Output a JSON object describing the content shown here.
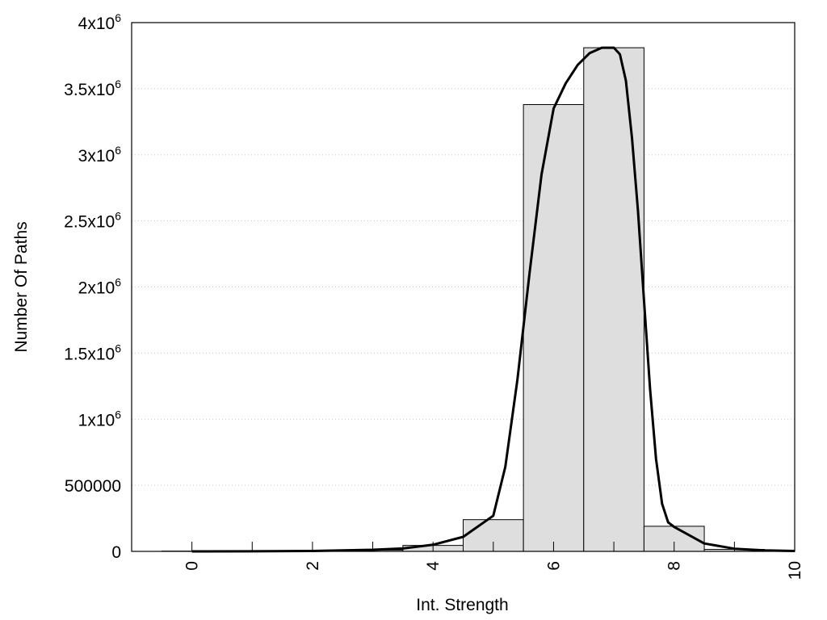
{
  "chart_data": {
    "type": "bar",
    "xlabel": "Int. Strength",
    "ylabel": "Number Of Paths",
    "xlim": [
      -1,
      10
    ],
    "ylim": [
      0,
      4000000
    ],
    "x_ticks": [
      {
        "value": 0,
        "label": "0"
      },
      {
        "value": 2,
        "label": "2"
      },
      {
        "value": 4,
        "label": "4"
      },
      {
        "value": 6,
        "label": "6"
      },
      {
        "value": 8,
        "label": "8"
      },
      {
        "value": 10,
        "label": "10"
      }
    ],
    "y_ticks": [
      {
        "value": 0,
        "base": "0",
        "exp": ""
      },
      {
        "value": 500000,
        "base": "500000",
        "exp": ""
      },
      {
        "value": 1000000,
        "base": "1x10",
        "exp": "6"
      },
      {
        "value": 1500000,
        "base": "1.5x10",
        "exp": "6"
      },
      {
        "value": 2000000,
        "base": "2x10",
        "exp": "6"
      },
      {
        "value": 2500000,
        "base": "2.5x10",
        "exp": "6"
      },
      {
        "value": 3000000,
        "base": "3x10",
        "exp": "6"
      },
      {
        "value": 3500000,
        "base": "3.5x10",
        "exp": "6"
      },
      {
        "value": 4000000,
        "base": "4x10",
        "exp": "6"
      }
    ],
    "grid": "horizontal dotted",
    "bars": {
      "bin_width": 1,
      "centers": [
        0,
        1,
        2,
        3,
        4,
        5,
        6,
        7,
        8,
        9
      ],
      "values": [
        2000,
        3000,
        5000,
        10000,
        45000,
        240000,
        3380000,
        3810000,
        190000,
        15000
      ]
    },
    "fit_curve": {
      "x": [
        0,
        1,
        2,
        3,
        3.5,
        4,
        4.5,
        5,
        5.2,
        5.4,
        5.6,
        5.8,
        6.0,
        6.2,
        6.4,
        6.6,
        6.8,
        7.0,
        7.1,
        7.2,
        7.3,
        7.4,
        7.5,
        7.6,
        7.7,
        7.8,
        7.9,
        8.0,
        8.5,
        9.0,
        9.5,
        10.0
      ],
      "y": [
        0,
        800,
        3000,
        12000,
        22000,
        50000,
        110000,
        270000,
        640000,
        1300000,
        2100000,
        2850000,
        3350000,
        3540000,
        3680000,
        3770000,
        3810000,
        3810000,
        3760000,
        3560000,
        3130000,
        2580000,
        1900000,
        1230000,
        700000,
        360000,
        220000,
        185000,
        60000,
        20000,
        8000,
        3000
      ]
    }
  }
}
